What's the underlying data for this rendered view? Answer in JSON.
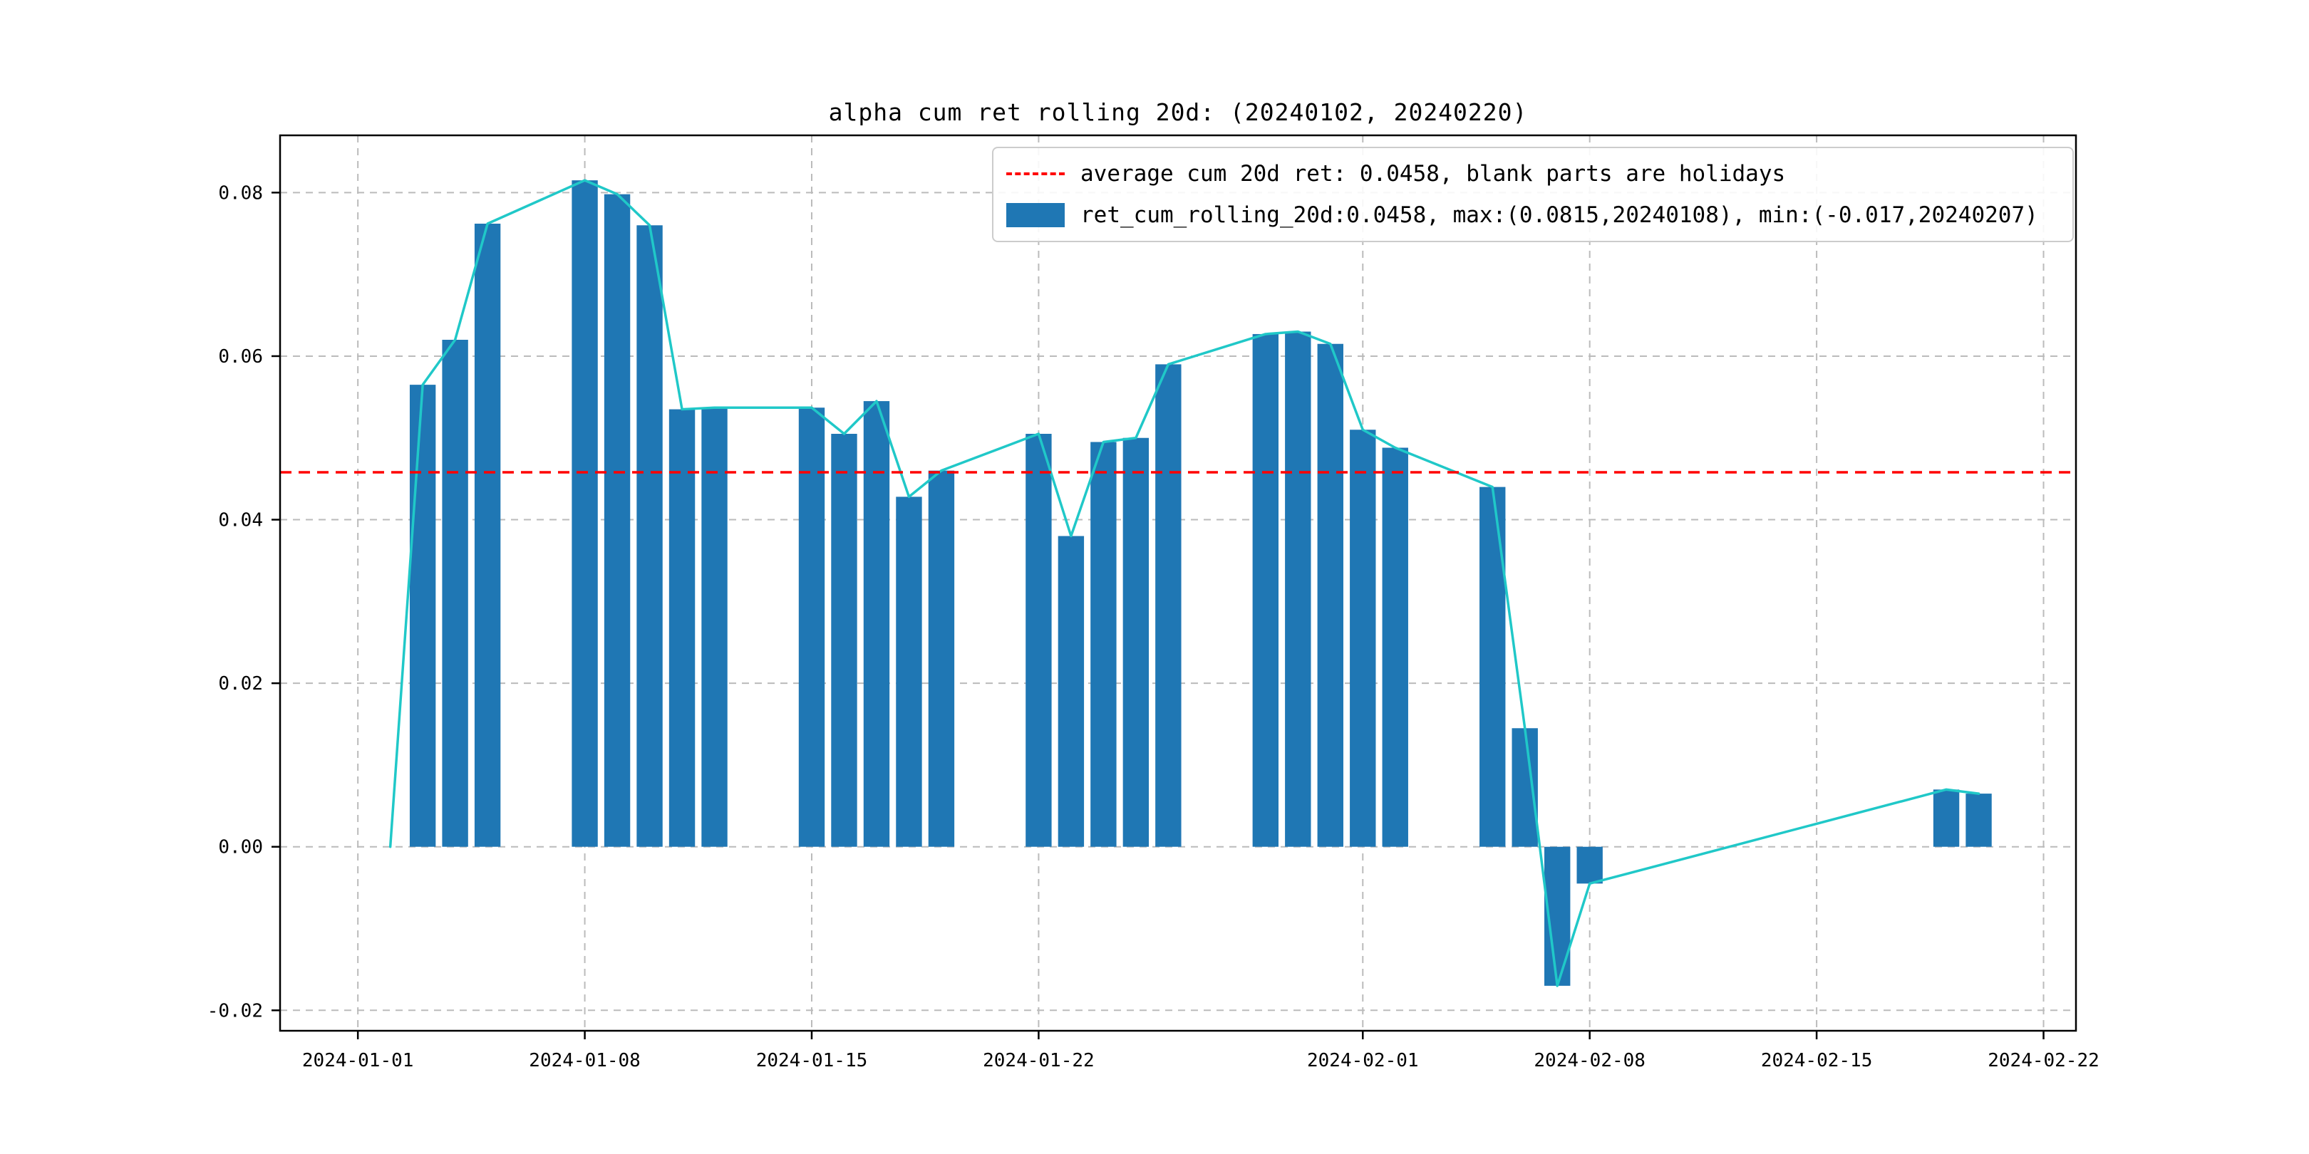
{
  "figure": {
    "background": "#ffffff"
  },
  "legend": {
    "avg_label": "average cum 20d ret: 0.0458, blank parts are holidays",
    "series_label": "ret_cum_rolling_20d:0.0458, max:(0.0815,20240108), min:(-0.017,20240207)"
  },
  "chart_data": {
    "type": "bar",
    "title": "alpha cum ret rolling 20d: (20240102, 20240220)",
    "x": [
      "2024-01-02",
      "2024-01-03",
      "2024-01-04",
      "2024-01-05",
      "2024-01-08",
      "2024-01-09",
      "2024-01-10",
      "2024-01-11",
      "2024-01-12",
      "2024-01-15",
      "2024-01-16",
      "2024-01-17",
      "2024-01-18",
      "2024-01-19",
      "2024-01-22",
      "2024-01-23",
      "2024-01-24",
      "2024-01-25",
      "2024-01-26",
      "2024-01-29",
      "2024-01-30",
      "2024-01-31",
      "2024-02-01",
      "2024-02-02",
      "2024-02-05",
      "2024-02-06",
      "2024-02-07",
      "2024-02-08",
      "2024-02-19",
      "2024-02-20"
    ],
    "series": [
      {
        "name": "ret_cum_rolling_20d",
        "values": [
          0.0,
          0.0565,
          0.062,
          0.0762,
          0.0815,
          0.0798,
          0.076,
          0.0535,
          0.0537,
          0.0537,
          0.0505,
          0.0545,
          0.0428,
          0.046,
          0.0505,
          0.038,
          0.0495,
          0.05,
          0.059,
          0.0627,
          0.063,
          0.0615,
          0.051,
          0.0488,
          0.044,
          0.0145,
          -0.017,
          -0.0045,
          0.007,
          0.0065
        ]
      }
    ],
    "line_overlay": true,
    "average": 0.0458,
    "max": {
      "value": 0.0815,
      "date": "20240108"
    },
    "min": {
      "value": -0.017,
      "date": "20240207"
    },
    "note": "blank parts are holidays",
    "x_ticks": [
      "2024-01-01",
      "2024-01-08",
      "2024-01-15",
      "2024-01-22",
      "2024-02-01",
      "2024-02-08",
      "2024-02-15",
      "2024-02-22"
    ],
    "y_ticks": [
      -0.02,
      0.0,
      0.02,
      0.04,
      0.06,
      0.08
    ],
    "ylim": [
      -0.0225,
      0.087
    ],
    "xlim_days_from_first_tick": [
      -2.4,
      53.0
    ],
    "grid": true,
    "legend_position": "upper right",
    "colors": {
      "bar": "#1f77b4",
      "line": "#20c8c8",
      "average": "#ff0000",
      "grid": "#bbbbbb",
      "spine": "#000000",
      "text": "#000000",
      "legend_border": "#cccccc"
    }
  }
}
